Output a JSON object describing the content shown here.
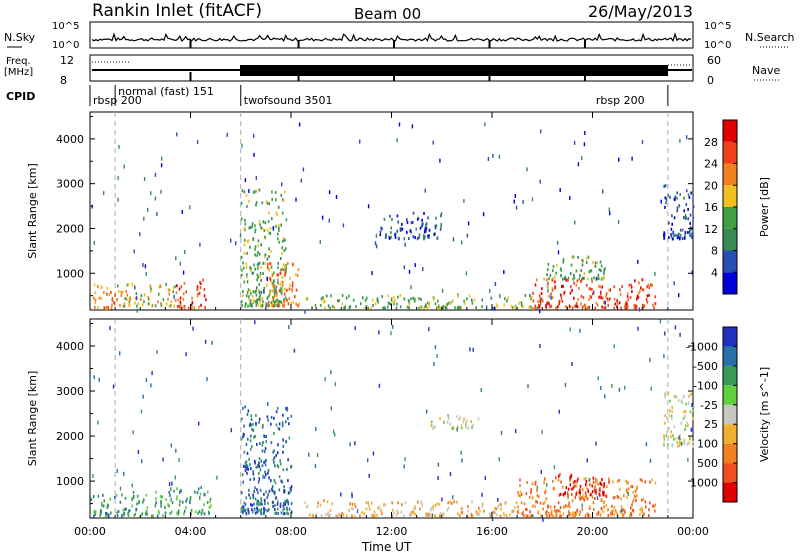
{
  "header": {
    "station": "Rankin Inlet (fitACF)",
    "beam": "Beam 00",
    "date": "26/May/2013"
  },
  "top_panels": {
    "nsky_label": "N.Sky",
    "nsky_ticks": [
      "10^5",
      "10^0"
    ],
    "nsearch_label": "N.Search",
    "nsearch_ticks": [
      "10^5",
      "10^0"
    ],
    "freq_label": "Freq.",
    "freq_unit": "[MHz]",
    "freq_ticks": [
      "12",
      "8"
    ],
    "nave_label": "Nave",
    "nave_ticks": [
      "60",
      "0"
    ],
    "cpid_label": "CPID"
  },
  "cpid_segments": [
    {
      "label": "rbsp 200",
      "start_hour": 0.0,
      "end_hour": 1.0
    },
    {
      "label": "normal (fast) 151",
      "start_hour": 1.0,
      "end_hour": 6.0
    },
    {
      "label": "twofsound 3501",
      "start_hour": 6.0,
      "end_hour": 23.0
    },
    {
      "label": "rbsp 200",
      "start_hour": 23.0,
      "end_hour": 24.0
    }
  ],
  "chart_data": [
    {
      "type": "heatmap",
      "name": "power",
      "ylabel": "Slant Range [km]",
      "ylim": [
        180,
        4600
      ],
      "yticks": [
        1000,
        2000,
        3000,
        4000
      ],
      "xlim": [
        0,
        24
      ],
      "colorbar": {
        "label": "Power [dB]",
        "ticks": [
          "4",
          "8",
          "12",
          "16",
          "20",
          "24",
          "28"
        ],
        "colors": [
          "#0000d8",
          "#2a4fb4",
          "#3a8a58",
          "#3ea040",
          "#f0c020",
          "#f08020",
          "#f04020",
          "#e00000"
        ]
      },
      "regions": [
        {
          "t0": 0.0,
          "t1": 1.0,
          "r0": 250,
          "r1": 800,
          "level": 5
        },
        {
          "t0": 1.0,
          "t1": 3.4,
          "r0": 300,
          "r1": 800,
          "level": 4
        },
        {
          "t0": 3.4,
          "t1": 4.6,
          "r0": 250,
          "r1": 900,
          "level": 6
        },
        {
          "t0": 6.0,
          "t1": 7.8,
          "r0": 300,
          "r1": 2900,
          "level": 3
        },
        {
          "t0": 7.0,
          "t1": 8.3,
          "r0": 300,
          "r1": 1300,
          "level": 5
        },
        {
          "t0": 8.5,
          "t1": 18.0,
          "r0": 250,
          "r1": 550,
          "level": 3
        },
        {
          "t0": 11.5,
          "t1": 14.0,
          "r0": 1800,
          "r1": 2400,
          "level": 1
        },
        {
          "t0": 17.5,
          "t1": 22.5,
          "r0": 250,
          "r1": 900,
          "level": 6
        },
        {
          "t0": 18.0,
          "t1": 20.5,
          "r0": 900,
          "r1": 1400,
          "level": 3
        },
        {
          "t0": 22.8,
          "t1": 24.0,
          "r0": 1800,
          "r1": 3000,
          "level": 1
        }
      ]
    },
    {
      "type": "heatmap",
      "name": "velocity",
      "ylabel": "Slant Range [km]",
      "ylim": [
        180,
        4600
      ],
      "yticks": [
        1000,
        2000,
        3000,
        4000
      ],
      "xlim": [
        0,
        24
      ],
      "xticks": [
        "00:00",
        "04:00",
        "08:00",
        "12:00",
        "16:00",
        "20:00",
        "00:00"
      ],
      "xlabel": "Time UT",
      "colorbar": {
        "label": "Velocity [m s^-1]",
        "ticks": [
          "1000",
          "500",
          "100",
          "25",
          "-25",
          "-100",
          "-500",
          "-1000"
        ],
        "colors": [
          "#2030c0",
          "#2a6fa8",
          "#3a9a5a",
          "#60d040",
          "#c8c8c0",
          "#f0b030",
          "#f08020",
          "#f05020",
          "#e00000"
        ]
      },
      "regions": [
        {
          "t0": 0.0,
          "t1": 3.0,
          "r0": 250,
          "r1": 800,
          "level": 2
        },
        {
          "t0": 3.0,
          "t1": 4.8,
          "r0": 300,
          "r1": 900,
          "level": 2
        },
        {
          "t0": 6.0,
          "t1": 8.0,
          "r0": 300,
          "r1": 2700,
          "level": 1
        },
        {
          "t0": 8.5,
          "t1": 17.0,
          "r0": 250,
          "r1": 600,
          "level": 5
        },
        {
          "t0": 13.5,
          "t1": 15.5,
          "r0": 2200,
          "r1": 2500,
          "level": 4
        },
        {
          "t0": 17.0,
          "t1": 22.5,
          "r0": 250,
          "r1": 1100,
          "level": 6
        },
        {
          "t0": 18.5,
          "t1": 20.5,
          "r0": 700,
          "r1": 1200,
          "level": 8
        },
        {
          "t0": 22.8,
          "t1": 24.0,
          "r0": 1800,
          "r1": 3000,
          "level": 4
        }
      ]
    }
  ]
}
